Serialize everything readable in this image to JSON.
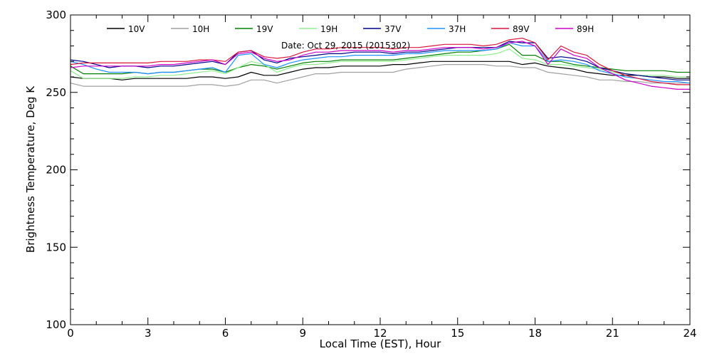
{
  "chart_data": {
    "type": "line",
    "xlabel": "Local Time (EST), Hour",
    "ylabel": "Brightness Temperature, Deg K",
    "annotation": "Date: Oct 29, 2015 (2015302)",
    "xlim": [
      0,
      24
    ],
    "ylim": [
      100,
      300
    ],
    "x_ticks": [
      0,
      3,
      6,
      9,
      12,
      15,
      18,
      21,
      24
    ],
    "x_tick_labels": [
      "0",
      "3",
      "6",
      "9",
      "12",
      "15",
      "18",
      "21",
      "24"
    ],
    "y_ticks": [
      100,
      150,
      200,
      250,
      300
    ],
    "y_tick_labels": [
      "100",
      "150",
      "200",
      "250",
      "300"
    ],
    "grid": false,
    "legend_position": "top",
    "x": [
      0,
      0.5,
      1,
      1.5,
      2,
      2.5,
      3,
      3.5,
      4,
      4.5,
      5,
      5.5,
      6,
      6.5,
      7,
      7.5,
      8,
      8.5,
      9,
      9.5,
      10,
      10.5,
      11,
      11.5,
      12,
      12.5,
      13,
      13.5,
      14,
      14.5,
      15,
      15.5,
      16,
      16.5,
      17,
      17.5,
      18,
      18.5,
      19,
      19.5,
      20,
      20.5,
      21,
      21.5,
      22,
      22.5,
      23,
      23.5,
      24
    ],
    "series": [
      {
        "name": "10V",
        "color": "#000000",
        "values": [
          260,
          259,
          259,
          259,
          258,
          259,
          259,
          259,
          259,
          259,
          260,
          260,
          259,
          260,
          263,
          261,
          261,
          263,
          265,
          266,
          266,
          267,
          267,
          267,
          267,
          268,
          268,
          269,
          270,
          270,
          270,
          270,
          270,
          270,
          270,
          268,
          269,
          267,
          266,
          265,
          263,
          262,
          261,
          261,
          261,
          260,
          260,
          259,
          259
        ]
      },
      {
        "name": "10H",
        "color": "#a0a0a0",
        "values": [
          256,
          254,
          254,
          254,
          254,
          254,
          254,
          254,
          254,
          254,
          255,
          255,
          254,
          255,
          258,
          258,
          256,
          258,
          260,
          262,
          262,
          263,
          263,
          263,
          263,
          263,
          265,
          266,
          267,
          268,
          268,
          268,
          268,
          267,
          267,
          266,
          266,
          263,
          262,
          261,
          260,
          258,
          258,
          257,
          257,
          256,
          256,
          256,
          256
        ]
      },
      {
        "name": "19V",
        "color": "#008000",
        "values": [
          267,
          262,
          262,
          262,
          262,
          263,
          262,
          263,
          263,
          264,
          265,
          265,
          263,
          266,
          268,
          267,
          265,
          267,
          269,
          270,
          270,
          271,
          271,
          271,
          271,
          271,
          272,
          273,
          274,
          275,
          276,
          276,
          277,
          278,
          281,
          274,
          274,
          270,
          270,
          268,
          267,
          266,
          265,
          264,
          264,
          264,
          264,
          263,
          263
        ]
      },
      {
        "name": "19H",
        "color": "#90ee90",
        "values": [
          264,
          259,
          259,
          259,
          259,
          260,
          260,
          261,
          261,
          262,
          263,
          264,
          262,
          266,
          270,
          268,
          263,
          266,
          268,
          268,
          269,
          270,
          270,
          270,
          270,
          270,
          271,
          272,
          273,
          274,
          274,
          274,
          274,
          275,
          278,
          272,
          271,
          268,
          268,
          267,
          266,
          265,
          263,
          262,
          261,
          261,
          261,
          260,
          260
        ]
      },
      {
        "name": "37V",
        "color": "#00008b",
        "values": [
          271,
          270,
          268,
          266,
          267,
          267,
          266,
          267,
          267,
          268,
          269,
          270,
          268,
          276,
          277,
          271,
          269,
          272,
          273,
          274,
          275,
          275,
          276,
          276,
          276,
          275,
          276,
          276,
          277,
          278,
          279,
          279,
          279,
          279,
          283,
          282,
          282,
          272,
          273,
          272,
          270,
          266,
          264,
          262,
          261,
          260,
          259,
          258,
          258
        ]
      },
      {
        "name": "37H",
        "color": "#1e90ff",
        "values": [
          270,
          268,
          265,
          263,
          263,
          263,
          262,
          263,
          263,
          264,
          265,
          266,
          263,
          274,
          275,
          268,
          266,
          269,
          271,
          272,
          273,
          273,
          274,
          274,
          274,
          274,
          275,
          275,
          276,
          277,
          277,
          277,
          277,
          278,
          282,
          280,
          280,
          270,
          271,
          270,
          268,
          264,
          262,
          260,
          259,
          258,
          257,
          257,
          256
        ]
      },
      {
        "name": "89V",
        "color": "#dc143c",
        "values": [
          268,
          269,
          269,
          269,
          269,
          269,
          269,
          270,
          270,
          270,
          271,
          271,
          270,
          276,
          277,
          273,
          272,
          273,
          276,
          278,
          278,
          279,
          279,
          279,
          279,
          278,
          279,
          279,
          280,
          281,
          281,
          281,
          280,
          281,
          284,
          285,
          282,
          271,
          280,
          276,
          274,
          268,
          264,
          261,
          259,
          257,
          256,
          255,
          255
        ]
      },
      {
        "name": "89H",
        "color": "#cc00cc",
        "values": [
          266,
          267,
          267,
          267,
          267,
          267,
          267,
          268,
          268,
          269,
          270,
          271,
          268,
          275,
          276,
          272,
          270,
          271,
          274,
          276,
          276,
          277,
          277,
          277,
          277,
          276,
          277,
          277,
          278,
          279,
          279,
          279,
          278,
          279,
          282,
          283,
          280,
          268,
          278,
          274,
          272,
          266,
          262,
          258,
          256,
          254,
          253,
          252,
          252
        ]
      }
    ]
  }
}
